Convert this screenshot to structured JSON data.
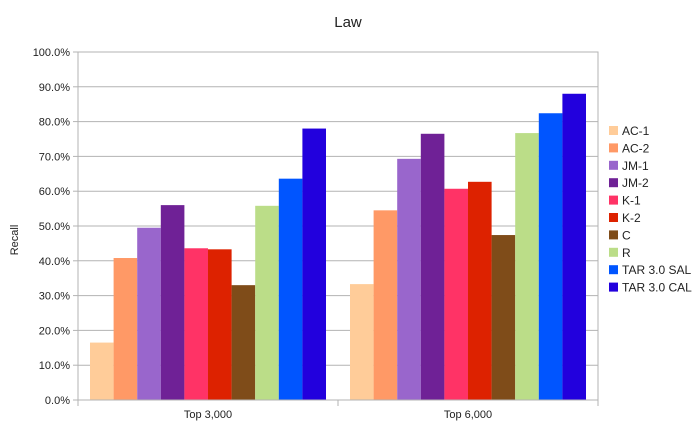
{
  "chart_data": {
    "type": "bar",
    "title": "Law",
    "ylabel": "Recall",
    "xlabel": "",
    "ylim": [
      0,
      100
    ],
    "yticks": [
      0,
      10,
      20,
      30,
      40,
      50,
      60,
      70,
      80,
      90,
      100
    ],
    "ytick_format": "percent_1dp",
    "grid": true,
    "legend_position": "right",
    "categories": [
      "Top 3,000",
      "Top 6,000"
    ],
    "series": [
      {
        "name": "AC-1",
        "color": "#ffcc99",
        "values": [
          16.5,
          33.3
        ]
      },
      {
        "name": "AC-2",
        "color": "#ff9966",
        "values": [
          40.8,
          54.5
        ]
      },
      {
        "name": "JM-1",
        "color": "#9966cc",
        "values": [
          49.5,
          69.3
        ]
      },
      {
        "name": "JM-2",
        "color": "#6f2196",
        "values": [
          56.0,
          76.5
        ]
      },
      {
        "name": "K-1",
        "color": "#ff3366",
        "values": [
          43.6,
          60.7
        ]
      },
      {
        "name": "K-2",
        "color": "#dd2200",
        "values": [
          43.3,
          62.7
        ]
      },
      {
        "name": "C",
        "color": "#7f4c19",
        "values": [
          33.0,
          47.4
        ]
      },
      {
        "name": "R",
        "color": "#bbdd88",
        "values": [
          55.8,
          76.7
        ]
      },
      {
        "name": "TAR 3.0 SAL",
        "color": "#0055ff",
        "values": [
          63.6,
          82.4
        ]
      },
      {
        "name": "TAR 3.0 CAL",
        "color": "#2200dd",
        "values": [
          78.0,
          88.0
        ]
      }
    ]
  }
}
